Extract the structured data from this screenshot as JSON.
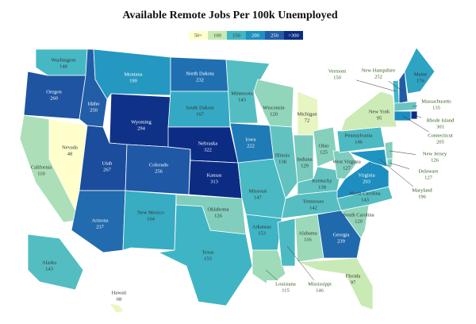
{
  "chart_data": {
    "type": "map",
    "title": "Available Remote Jobs Per 100k Unemployed",
    "bins": [
      {
        "value": 50,
        "label": "50<"
      },
      100,
      150,
      200,
      250,
      {
        "value": 300,
        "label": ">300"
      }
    ],
    "colors": [
      "#ffffcc",
      "#c7e9b4",
      "#41b6c4",
      "#1d91c0",
      "#225ea8",
      "#0c2c84"
    ],
    "regions": [
      {
        "name": "Washington",
        "value": 148
      },
      {
        "name": "Oregon",
        "value": 260
      },
      {
        "name": "California",
        "value": 110
      },
      {
        "name": "Nevada",
        "value": 48
      },
      {
        "name": "Idaho",
        "value": 250
      },
      {
        "name": "Montana",
        "value": 190
      },
      {
        "name": "Wyoming",
        "value": 294
      },
      {
        "name": "Utah",
        "value": 267
      },
      {
        "name": "Arizona",
        "value": 237
      },
      {
        "name": "Colorado",
        "value": 256
      },
      {
        "name": "New Mexico",
        "value": 164
      },
      {
        "name": "North Dakota",
        "value": 232
      },
      {
        "name": "South Dakota",
        "value": 167
      },
      {
        "name": "Nebraska",
        "value": 322
      },
      {
        "name": "Kansas",
        "value": 313
      },
      {
        "name": "Oklahoma",
        "value": 126
      },
      {
        "name": "Texas",
        "value": 153
      },
      {
        "name": "Minnesota",
        "value": 143
      },
      {
        "name": "Iowa",
        "value": 222
      },
      {
        "name": "Missouri",
        "value": 147
      },
      {
        "name": "Arkansas",
        "value": 153
      },
      {
        "name": "Louisiana",
        "value": 115
      },
      {
        "name": "Wisconsin",
        "value": 120
      },
      {
        "name": "Illinois",
        "value": 138
      },
      {
        "name": "Michigan",
        "value": 72
      },
      {
        "name": "Indiana",
        "value": 129
      },
      {
        "name": "Ohio",
        "value": 125
      },
      {
        "name": "Kentucky",
        "value": 138
      },
      {
        "name": "Tennessee",
        "value": 142
      },
      {
        "name": "Mississippi",
        "value": 146
      },
      {
        "name": "Alabama",
        "value": 116
      },
      {
        "name": "Georgia",
        "value": 239
      },
      {
        "name": "Florida",
        "value": 97
      },
      {
        "name": "South Carolina",
        "value": 120
      },
      {
        "name": "North Carolina",
        "value": 143
      },
      {
        "name": "Virginia",
        "value": 203
      },
      {
        "name": "West Virginia",
        "value": 127
      },
      {
        "name": "Pennsylvania",
        "value": 146
      },
      {
        "name": "New York",
        "value": 95
      },
      {
        "name": "New Jersey",
        "value": 126
      },
      {
        "name": "Delaware",
        "value": 127
      },
      {
        "name": "Maryland",
        "value": 196
      },
      {
        "name": "Vermont",
        "value": 150
      },
      {
        "name": "New Hampshire",
        "value": 252
      },
      {
        "name": "Maine",
        "value": 176
      },
      {
        "name": "Massachusetts",
        "value": 135
      },
      {
        "name": "Rhode Island",
        "value": 301
      },
      {
        "name": "Connecticut",
        "value": 205
      },
      {
        "name": "Alaska",
        "value": 143
      },
      {
        "name": "Hawaii",
        "value": 68
      }
    ]
  }
}
